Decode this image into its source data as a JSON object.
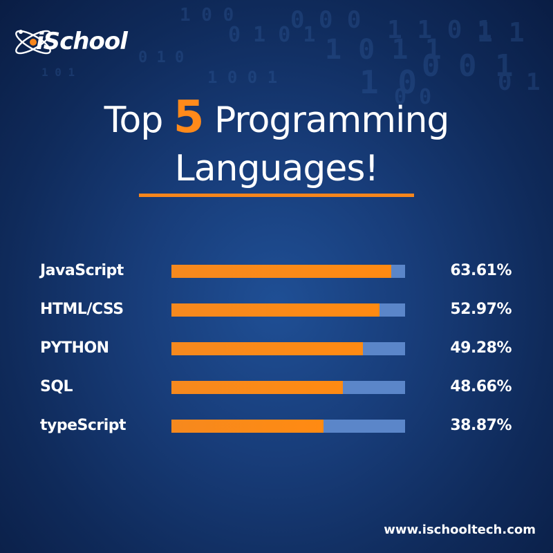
{
  "brand": {
    "logo_text": "iSchool",
    "website": "www.ischooltech.com"
  },
  "heading": {
    "prefix": "Top",
    "number": "5",
    "suffix": "Programming",
    "line2": "Languages!"
  },
  "colors": {
    "accent": "#f7861c",
    "track": "#5b86c9",
    "background": "#183d7a"
  },
  "chart_data": {
    "type": "bar",
    "orientation": "horizontal",
    "title": "Top 5 Programming Languages!",
    "categories": [
      "JavaScript",
      "HTML/CSS",
      "PYTHON",
      "SQL",
      "typeScript"
    ],
    "values": [
      63.61,
      52.97,
      49.28,
      48.66,
      38.87
    ],
    "value_labels": [
      "63.61%",
      "52.97%",
      "49.28%",
      "48.66%",
      "38.87%"
    ],
    "fill_fractions": [
      0.94,
      0.89,
      0.82,
      0.735,
      0.65
    ],
    "xlabel": "",
    "ylabel": "",
    "grid": false
  }
}
